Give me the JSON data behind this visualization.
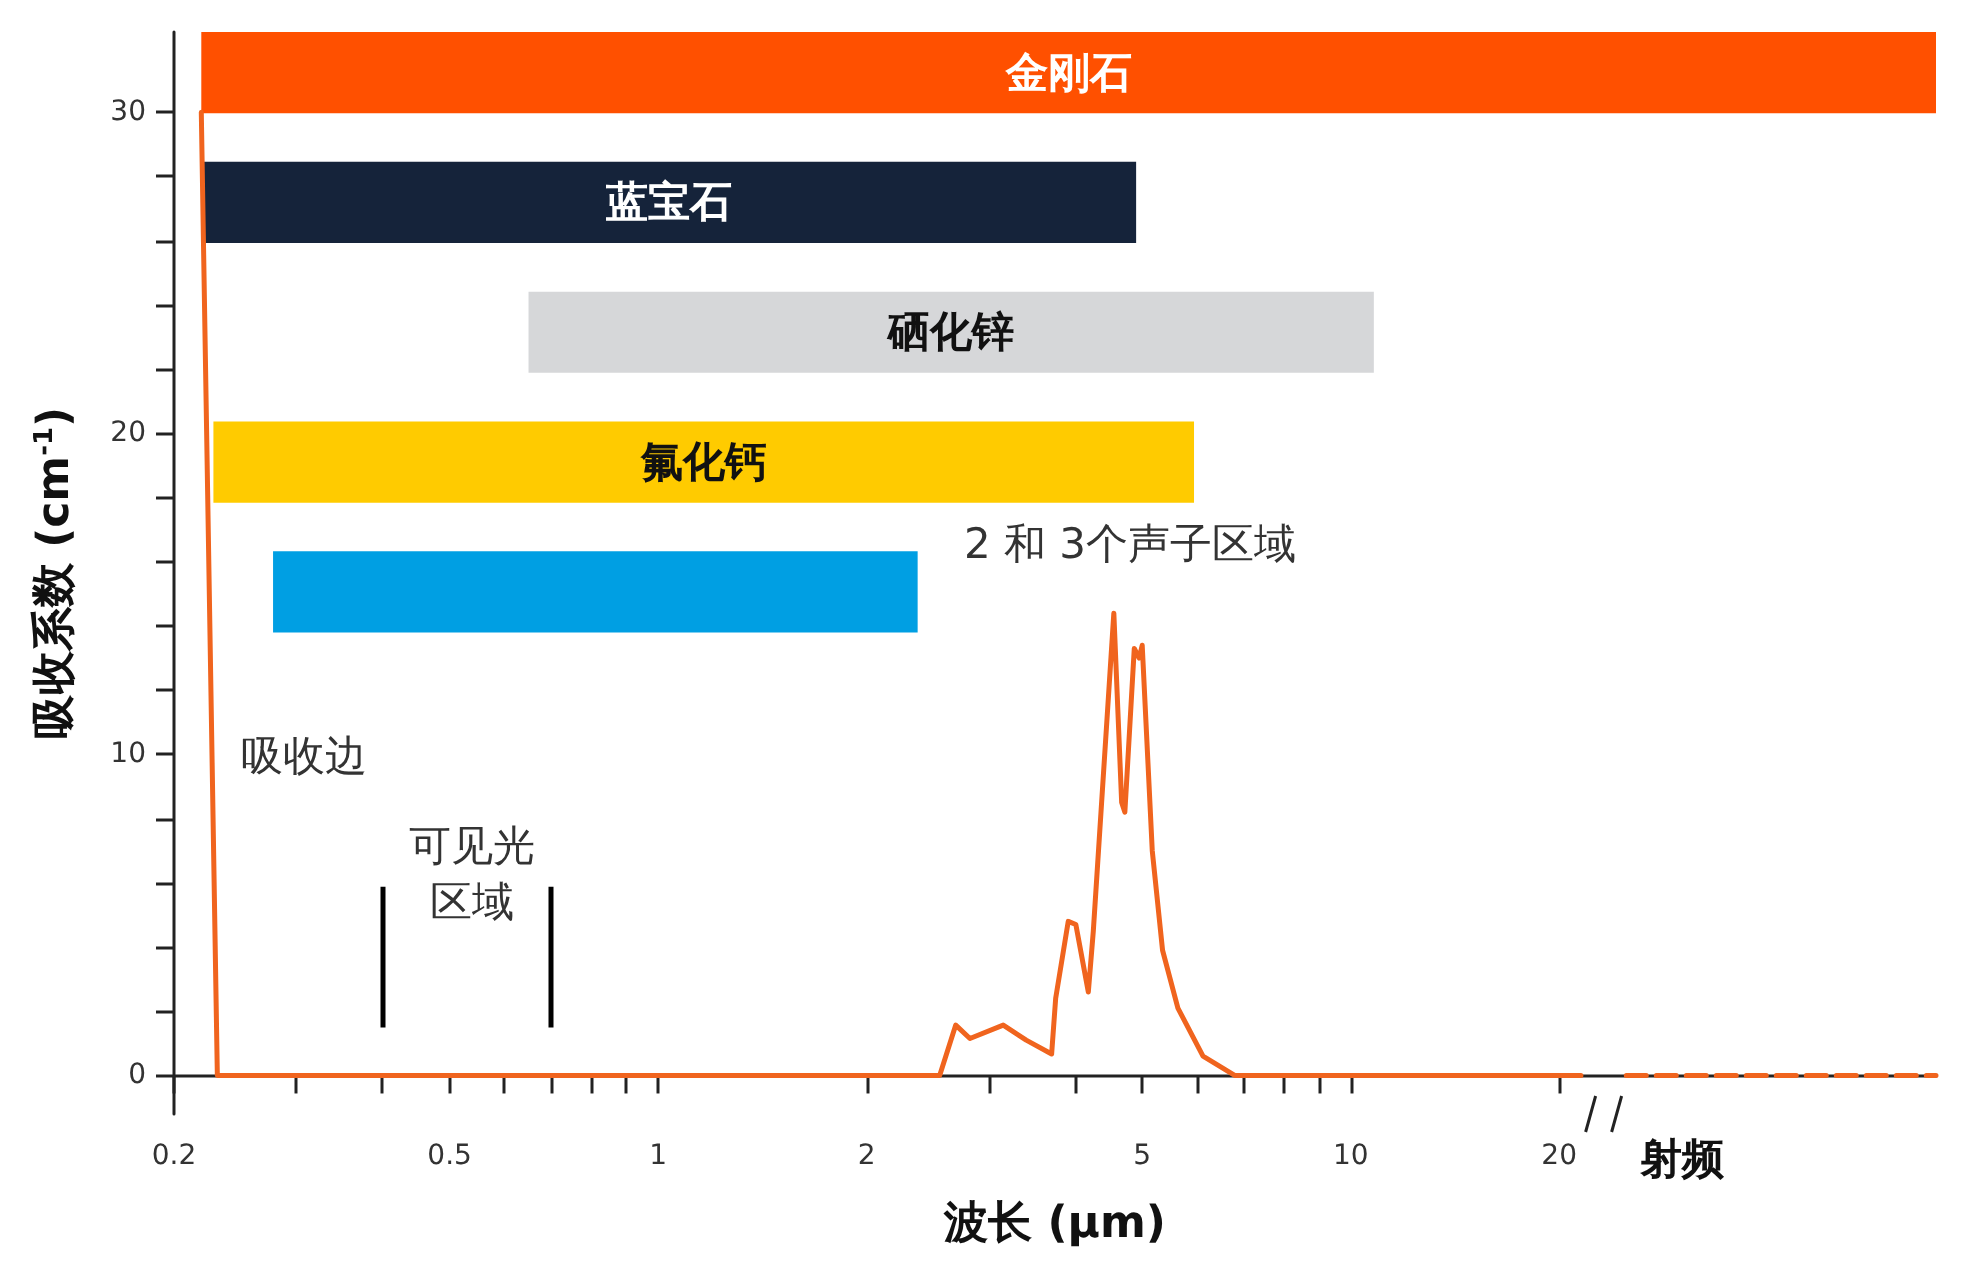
{
  "chart_data": {
    "type": "line",
    "xlabel": "波长 (μm)",
    "ylabel": "吸收系数 (cm$^{-1}$)",
    "log": "x",
    "grid": false,
    "marker": "none",
    "xlim": [
      0.2,
      70
    ],
    "ylim": [
      -1.2,
      32.5
    ],
    "xticks": [
      0.2,
      {
        "value": 0.3,
        "label": null
      },
      {
        "value": 0.4,
        "label": null
      },
      0.5,
      {
        "value": 0.6,
        "label": null
      },
      {
        "value": 0.7,
        "label": null
      },
      {
        "value": 0.8,
        "label": null
      },
      {
        "value": 0.9,
        "label": null
      },
      1,
      2,
      {
        "value": 3,
        "label": null
      },
      {
        "value": 4,
        "label": null
      },
      5,
      {
        "value": 6,
        "label": null
      },
      {
        "value": 7,
        "label": null
      },
      {
        "value": 8,
        "label": null
      },
      {
        "value": 9,
        "label": null
      },
      10,
      20
    ],
    "yticks": [
      0,
      {
        "value": 2,
        "label": null
      },
      {
        "value": 4,
        "label": null
      },
      {
        "value": 6,
        "label": null
      },
      {
        "value": 8,
        "label": null
      },
      10,
      {
        "value": 12,
        "label": null
      },
      {
        "value": 14,
        "label": null
      },
      {
        "value": 16,
        "label": null
      },
      {
        "value": 18,
        "label": null
      },
      20,
      {
        "value": 22,
        "label": null
      },
      {
        "value": 24,
        "label": null
      },
      {
        "value": 26,
        "label": null
      },
      {
        "value": 28,
        "label": null
      },
      30
    ],
    "series": [
      {
        "color": "#f0641e",
        "line_style": "solid",
        "x": [
          0.219,
          0.231,
          2.55,
          2.69,
          2.82,
          3.15,
          3.4,
          3.7,
          3.75,
          3.91,
          4.01,
          4.18,
          4.25,
          4.55,
          4.67,
          4.72,
          4.87,
          4.95,
          5.0,
          5.17,
          5.35,
          5.63,
          6.12,
          6.8,
          21.5
        ],
        "values": [
          30,
          0,
          0,
          1.57,
          1.15,
          1.57,
          1.1,
          0.67,
          2.4,
          4.8,
          4.7,
          2.6,
          4.5,
          14.4,
          8.5,
          8.2,
          13.3,
          13.0,
          13.4,
          7.0,
          3.9,
          2.1,
          0.6,
          0,
          0
        ]
      },
      {
        "color": "#f0641e",
        "line_style": "dashed",
        "x": [
          25,
          70
        ],
        "values": [
          0,
          0
        ]
      }
    ],
    "bands": [
      {
        "axis": "x",
        "from": 0.219,
        "to": 70,
        "label": "金刚石",
        "color": "#ff5000"
      },
      {
        "axis": "x",
        "from": 0.219,
        "to": 4.9,
        "label": "蓝宝石",
        "color": "#15233a"
      },
      {
        "axis": "x",
        "from": 0.65,
        "to": 10.8,
        "label": "硒化锌",
        "color": "#d6d7d9"
      },
      {
        "axis": "x",
        "from": 0.228,
        "to": 5.94,
        "label": "氟化钙",
        "color": "#ffcb00"
      },
      {
        "axis": "x",
        "from": 0.278,
        "to": 2.37,
        "label": null,
        "color": "#009fe3"
      }
    ],
    "ref_lines": [
      {
        "axis": "x",
        "value": 0.4,
        "label": null,
        "color": "#000000"
      },
      {
        "axis": "x",
        "value": 0.7,
        "label": null,
        "color": "#000000"
      }
    ],
    "annotations": [
      "吸收边",
      "可见光区域",
      "2 和 3个声子区域",
      "射频"
    ]
  }
}
